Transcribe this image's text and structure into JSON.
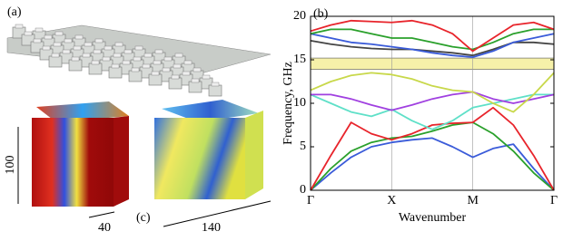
{
  "panels": {
    "a": "(a)",
    "c": "(c)",
    "height_dim": "100",
    "width_dim": "40",
    "length_dim": "140"
  },
  "chart_data": {
    "type": "line",
    "panel_label": "(b)",
    "x_label": "Wavenumber",
    "y_label": "Frequency, GHz",
    "x": [
      0,
      0.25,
      0.5,
      0.75,
      1,
      1.25,
      1.5,
      1.75,
      2,
      2.25,
      2.5,
      2.75,
      3
    ],
    "xlim": [
      0,
      3
    ],
    "xticks": [
      {
        "value": 0,
        "label": "Γ"
      },
      {
        "value": 1,
        "label": "X"
      },
      {
        "value": 2,
        "label": "M"
      },
      {
        "value": 3,
        "label": "Γ"
      }
    ],
    "ylim": [
      0,
      20
    ],
    "yticks": [
      0,
      5,
      10,
      15,
      20
    ],
    "band_gap": [
      13.9,
      15.2
    ],
    "band_gap_color": "#f6f1a9",
    "series": [
      {
        "color": "#3a5bd9",
        "values": [
          0,
          2,
          3.8,
          5,
          5.5,
          5.8,
          6,
          5,
          3.8,
          4.8,
          5.3,
          2.5,
          0
        ]
      },
      {
        "color": "#2aa02b",
        "values": [
          0,
          2.5,
          4.5,
          5.5,
          6,
          6.2,
          6.8,
          7.5,
          7.8,
          6.5,
          4.5,
          2,
          0
        ]
      },
      {
        "color": "#e8242b",
        "values": [
          0,
          4,
          7.8,
          6.5,
          5.8,
          6.5,
          7.5,
          7.7,
          7.8,
          9.5,
          7.5,
          4,
          0
        ]
      },
      {
        "color": "#5fe0c8",
        "values": [
          11,
          10,
          9,
          8.5,
          9.3,
          8,
          7,
          8,
          9.5,
          10,
          10.5,
          11,
          11
        ]
      },
      {
        "color": "#a040e0",
        "values": [
          11,
          11,
          10.5,
          9.8,
          9.2,
          9.8,
          10.5,
          11,
          11.3,
          10.5,
          10,
          10.5,
          11
        ]
      },
      {
        "color": "#c8d84a",
        "values": [
          11.5,
          12.5,
          13.2,
          13.5,
          13.3,
          12.8,
          12,
          11.5,
          11.3,
          10,
          9,
          11,
          13.5
        ]
      },
      {
        "color": "#444444",
        "values": [
          17.2,
          16.8,
          16.5,
          16.3,
          16.2,
          16.2,
          16,
          15.8,
          15.5,
          16.2,
          17,
          17,
          16.8
        ]
      },
      {
        "color": "#3a5bd9",
        "values": [
          18,
          17.5,
          17,
          16.8,
          16.5,
          16.2,
          15.8,
          15.5,
          15.3,
          16,
          17,
          17.5,
          18
        ]
      },
      {
        "color": "#2aa02b",
        "values": [
          18,
          18.5,
          18.5,
          18,
          17.5,
          17.5,
          17,
          16.5,
          16.2,
          17,
          18,
          18.5,
          18.5
        ]
      },
      {
        "color": "#e8242b",
        "values": [
          18.3,
          19,
          19.5,
          19.4,
          19.3,
          19.5,
          19,
          18,
          16,
          17.5,
          19,
          19.3,
          18.5
        ]
      }
    ]
  }
}
